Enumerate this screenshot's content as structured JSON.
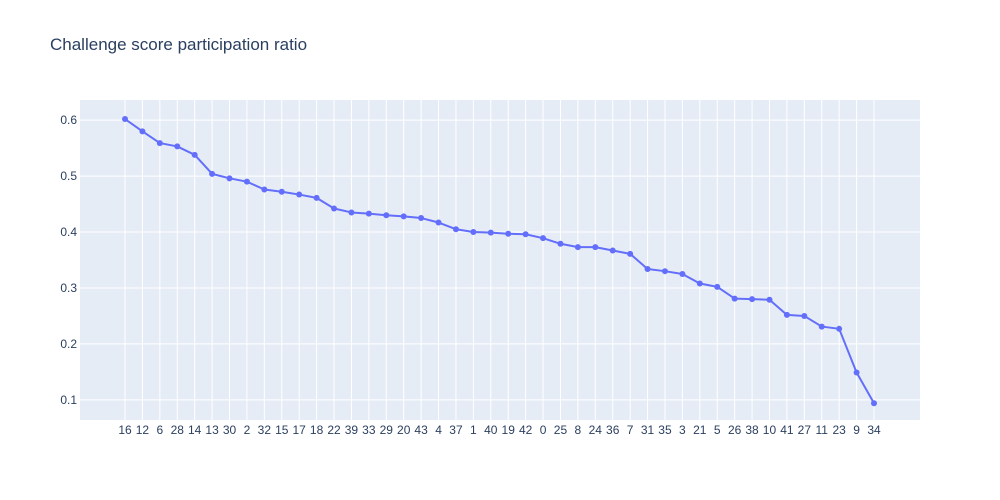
{
  "chart_data": {
    "type": "line",
    "title": "Challenge score participation ratio",
    "xlabel": "",
    "ylabel": "",
    "categories": [
      "16",
      "12",
      "6",
      "28",
      "14",
      "13",
      "30",
      "2",
      "32",
      "15",
      "17",
      "18",
      "22",
      "39",
      "33",
      "29",
      "20",
      "43",
      "4",
      "37",
      "1",
      "40",
      "19",
      "42",
      "0",
      "25",
      "8",
      "24",
      "36",
      "7",
      "31",
      "35",
      "3",
      "21",
      "5",
      "26",
      "38",
      "10",
      "41",
      "27",
      "11",
      "23",
      "9",
      "34"
    ],
    "series": [
      {
        "name": "",
        "values": [
          0.602,
          0.58,
          0.559,
          0.553,
          0.538,
          0.504,
          0.496,
          0.49,
          0.476,
          0.472,
          0.467,
          0.461,
          0.442,
          0.435,
          0.433,
          0.43,
          0.428,
          0.425,
          0.417,
          0.405,
          0.4,
          0.399,
          0.397,
          0.396,
          0.389,
          0.379,
          0.373,
          0.373,
          0.367,
          0.361,
          0.334,
          0.33,
          0.325,
          0.308,
          0.302,
          0.281,
          0.28,
          0.279,
          0.252,
          0.25,
          0.231,
          0.227,
          0.149,
          0.094
        ]
      }
    ],
    "yticks": [
      0.1,
      0.2,
      0.3,
      0.4,
      0.5,
      0.6
    ],
    "ylim": [
      0.064,
      0.636
    ],
    "grid": true,
    "legend": "none",
    "colors": {
      "line": "#636efa",
      "plot_background": "#e5ecf6",
      "grid": "#ffffff",
      "text": "#2a3f5f"
    }
  }
}
